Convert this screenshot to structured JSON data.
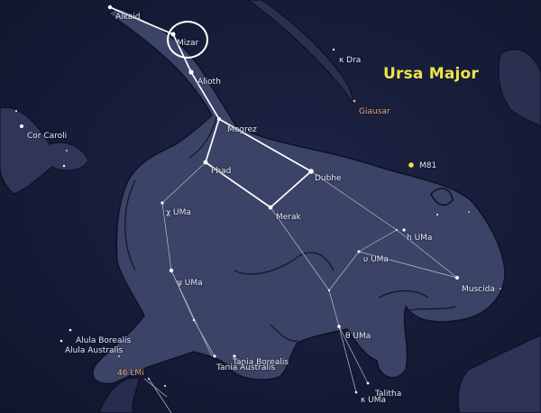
{
  "title": "Ursa Major",
  "colors": {
    "sky": "#161c38",
    "figure": "#3b4366",
    "figure_line": "#0d1126",
    "constellation_line": "#ffffff",
    "grid_line": "#b9bccb",
    "star_label": "#e6e8ef",
    "dso_label": "#e6a87a",
    "title": "#f0e24a",
    "m81_marker": "#f0e24a"
  },
  "stars": [
    {
      "name": "Alkaid"
    },
    {
      "name": "Mizar"
    },
    {
      "name": "Alioth"
    },
    {
      "name": "Megrez"
    },
    {
      "name": "Phad"
    },
    {
      "name": "Dubhe"
    },
    {
      "name": "Merak"
    },
    {
      "name": "χ UMa"
    },
    {
      "name": "ψ UMa"
    },
    {
      "name": "h UMa"
    },
    {
      "name": "υ UMa"
    },
    {
      "name": "Muscida"
    },
    {
      "name": "θ UMa"
    },
    {
      "name": "Cor Caroli"
    },
    {
      "name": "κ Dra"
    },
    {
      "name": "Alula Borealis"
    },
    {
      "name": "Alula Australis"
    },
    {
      "name": "Tania Borealis"
    },
    {
      "name": "Tania Australis"
    },
    {
      "name": "Talitha"
    },
    {
      "name": "κ UMa"
    }
  ],
  "objects": [
    {
      "name": "Giausar"
    },
    {
      "name": "M81"
    },
    {
      "name": "46 LMi"
    }
  ],
  "highlight": {
    "target": "Mizar",
    "icon": "circle-highlight"
  }
}
